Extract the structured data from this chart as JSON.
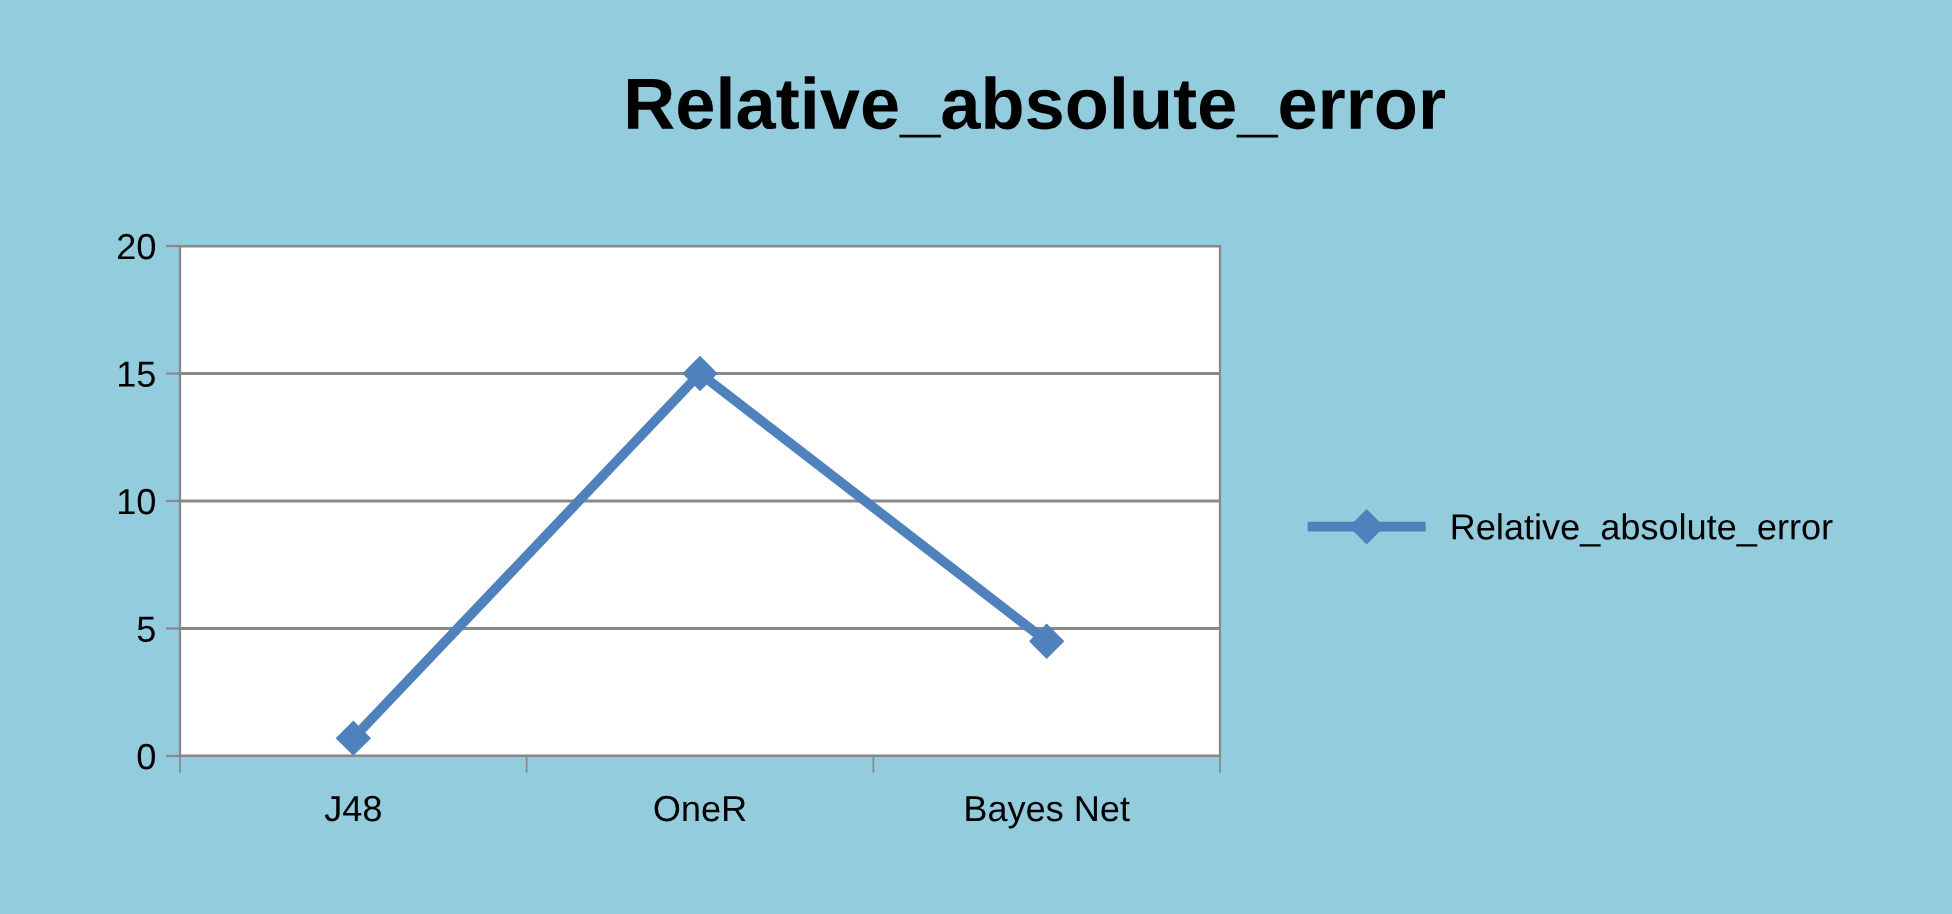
{
  "chart_data": {
    "type": "line",
    "title": "Relative_absolute_error",
    "categories": [
      "J48",
      "OneR",
      "Bayes Net"
    ],
    "series": [
      {
        "name": "Relative_absolute_error",
        "color": "#4f81bd",
        "values": [
          0.7,
          15,
          4.5
        ]
      }
    ],
    "ylim": [
      0,
      20
    ],
    "yticks": [
      0,
      5,
      10,
      15,
      20
    ],
    "grid": "y",
    "legend": "right",
    "marker": "diamond",
    "line_style": "solid"
  }
}
